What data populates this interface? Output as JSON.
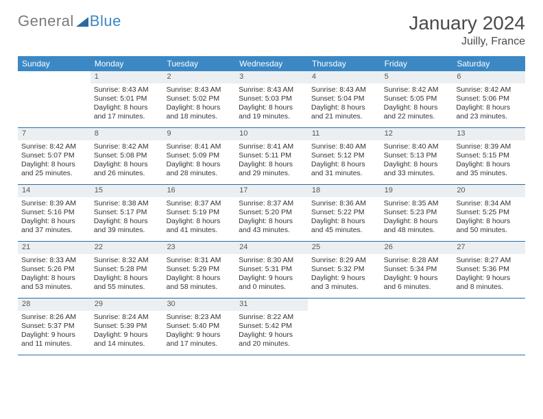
{
  "branding": {
    "logo_left": "General",
    "logo_right": "Blue",
    "logo_left_color": "#7a7a7a",
    "logo_right_color": "#3b88c4",
    "wedge_color": "#2a6aa0"
  },
  "title": "January 2024",
  "location": "Juilly, France",
  "colors": {
    "header_bg": "#3b88c4",
    "header_text": "#ffffff",
    "daynum_bg": "#eceff1",
    "week_border": "#2a6aa0",
    "text": "#333333"
  },
  "day_headers": [
    "Sunday",
    "Monday",
    "Tuesday",
    "Wednesday",
    "Thursday",
    "Friday",
    "Saturday"
  ],
  "weeks": [
    [
      null,
      {
        "num": "1",
        "sunrise": "Sunrise: 8:43 AM",
        "sunset": "Sunset: 5:01 PM",
        "daylight": "Daylight: 8 hours and 17 minutes."
      },
      {
        "num": "2",
        "sunrise": "Sunrise: 8:43 AM",
        "sunset": "Sunset: 5:02 PM",
        "daylight": "Daylight: 8 hours and 18 minutes."
      },
      {
        "num": "3",
        "sunrise": "Sunrise: 8:43 AM",
        "sunset": "Sunset: 5:03 PM",
        "daylight": "Daylight: 8 hours and 19 minutes."
      },
      {
        "num": "4",
        "sunrise": "Sunrise: 8:43 AM",
        "sunset": "Sunset: 5:04 PM",
        "daylight": "Daylight: 8 hours and 21 minutes."
      },
      {
        "num": "5",
        "sunrise": "Sunrise: 8:42 AM",
        "sunset": "Sunset: 5:05 PM",
        "daylight": "Daylight: 8 hours and 22 minutes."
      },
      {
        "num": "6",
        "sunrise": "Sunrise: 8:42 AM",
        "sunset": "Sunset: 5:06 PM",
        "daylight": "Daylight: 8 hours and 23 minutes."
      }
    ],
    [
      {
        "num": "7",
        "sunrise": "Sunrise: 8:42 AM",
        "sunset": "Sunset: 5:07 PM",
        "daylight": "Daylight: 8 hours and 25 minutes."
      },
      {
        "num": "8",
        "sunrise": "Sunrise: 8:42 AM",
        "sunset": "Sunset: 5:08 PM",
        "daylight": "Daylight: 8 hours and 26 minutes."
      },
      {
        "num": "9",
        "sunrise": "Sunrise: 8:41 AM",
        "sunset": "Sunset: 5:09 PM",
        "daylight": "Daylight: 8 hours and 28 minutes."
      },
      {
        "num": "10",
        "sunrise": "Sunrise: 8:41 AM",
        "sunset": "Sunset: 5:11 PM",
        "daylight": "Daylight: 8 hours and 29 minutes."
      },
      {
        "num": "11",
        "sunrise": "Sunrise: 8:40 AM",
        "sunset": "Sunset: 5:12 PM",
        "daylight": "Daylight: 8 hours and 31 minutes."
      },
      {
        "num": "12",
        "sunrise": "Sunrise: 8:40 AM",
        "sunset": "Sunset: 5:13 PM",
        "daylight": "Daylight: 8 hours and 33 minutes."
      },
      {
        "num": "13",
        "sunrise": "Sunrise: 8:39 AM",
        "sunset": "Sunset: 5:15 PM",
        "daylight": "Daylight: 8 hours and 35 minutes."
      }
    ],
    [
      {
        "num": "14",
        "sunrise": "Sunrise: 8:39 AM",
        "sunset": "Sunset: 5:16 PM",
        "daylight": "Daylight: 8 hours and 37 minutes."
      },
      {
        "num": "15",
        "sunrise": "Sunrise: 8:38 AM",
        "sunset": "Sunset: 5:17 PM",
        "daylight": "Daylight: 8 hours and 39 minutes."
      },
      {
        "num": "16",
        "sunrise": "Sunrise: 8:37 AM",
        "sunset": "Sunset: 5:19 PM",
        "daylight": "Daylight: 8 hours and 41 minutes."
      },
      {
        "num": "17",
        "sunrise": "Sunrise: 8:37 AM",
        "sunset": "Sunset: 5:20 PM",
        "daylight": "Daylight: 8 hours and 43 minutes."
      },
      {
        "num": "18",
        "sunrise": "Sunrise: 8:36 AM",
        "sunset": "Sunset: 5:22 PM",
        "daylight": "Daylight: 8 hours and 45 minutes."
      },
      {
        "num": "19",
        "sunrise": "Sunrise: 8:35 AM",
        "sunset": "Sunset: 5:23 PM",
        "daylight": "Daylight: 8 hours and 48 minutes."
      },
      {
        "num": "20",
        "sunrise": "Sunrise: 8:34 AM",
        "sunset": "Sunset: 5:25 PM",
        "daylight": "Daylight: 8 hours and 50 minutes."
      }
    ],
    [
      {
        "num": "21",
        "sunrise": "Sunrise: 8:33 AM",
        "sunset": "Sunset: 5:26 PM",
        "daylight": "Daylight: 8 hours and 53 minutes."
      },
      {
        "num": "22",
        "sunrise": "Sunrise: 8:32 AM",
        "sunset": "Sunset: 5:28 PM",
        "daylight": "Daylight: 8 hours and 55 minutes."
      },
      {
        "num": "23",
        "sunrise": "Sunrise: 8:31 AM",
        "sunset": "Sunset: 5:29 PM",
        "daylight": "Daylight: 8 hours and 58 minutes."
      },
      {
        "num": "24",
        "sunrise": "Sunrise: 8:30 AM",
        "sunset": "Sunset: 5:31 PM",
        "daylight": "Daylight: 9 hours and 0 minutes."
      },
      {
        "num": "25",
        "sunrise": "Sunrise: 8:29 AM",
        "sunset": "Sunset: 5:32 PM",
        "daylight": "Daylight: 9 hours and 3 minutes."
      },
      {
        "num": "26",
        "sunrise": "Sunrise: 8:28 AM",
        "sunset": "Sunset: 5:34 PM",
        "daylight": "Daylight: 9 hours and 6 minutes."
      },
      {
        "num": "27",
        "sunrise": "Sunrise: 8:27 AM",
        "sunset": "Sunset: 5:36 PM",
        "daylight": "Daylight: 9 hours and 8 minutes."
      }
    ],
    [
      {
        "num": "28",
        "sunrise": "Sunrise: 8:26 AM",
        "sunset": "Sunset: 5:37 PM",
        "daylight": "Daylight: 9 hours and 11 minutes."
      },
      {
        "num": "29",
        "sunrise": "Sunrise: 8:24 AM",
        "sunset": "Sunset: 5:39 PM",
        "daylight": "Daylight: 9 hours and 14 minutes."
      },
      {
        "num": "30",
        "sunrise": "Sunrise: 8:23 AM",
        "sunset": "Sunset: 5:40 PM",
        "daylight": "Daylight: 9 hours and 17 minutes."
      },
      {
        "num": "31",
        "sunrise": "Sunrise: 8:22 AM",
        "sunset": "Sunset: 5:42 PM",
        "daylight": "Daylight: 9 hours and 20 minutes."
      },
      null,
      null,
      null
    ]
  ]
}
